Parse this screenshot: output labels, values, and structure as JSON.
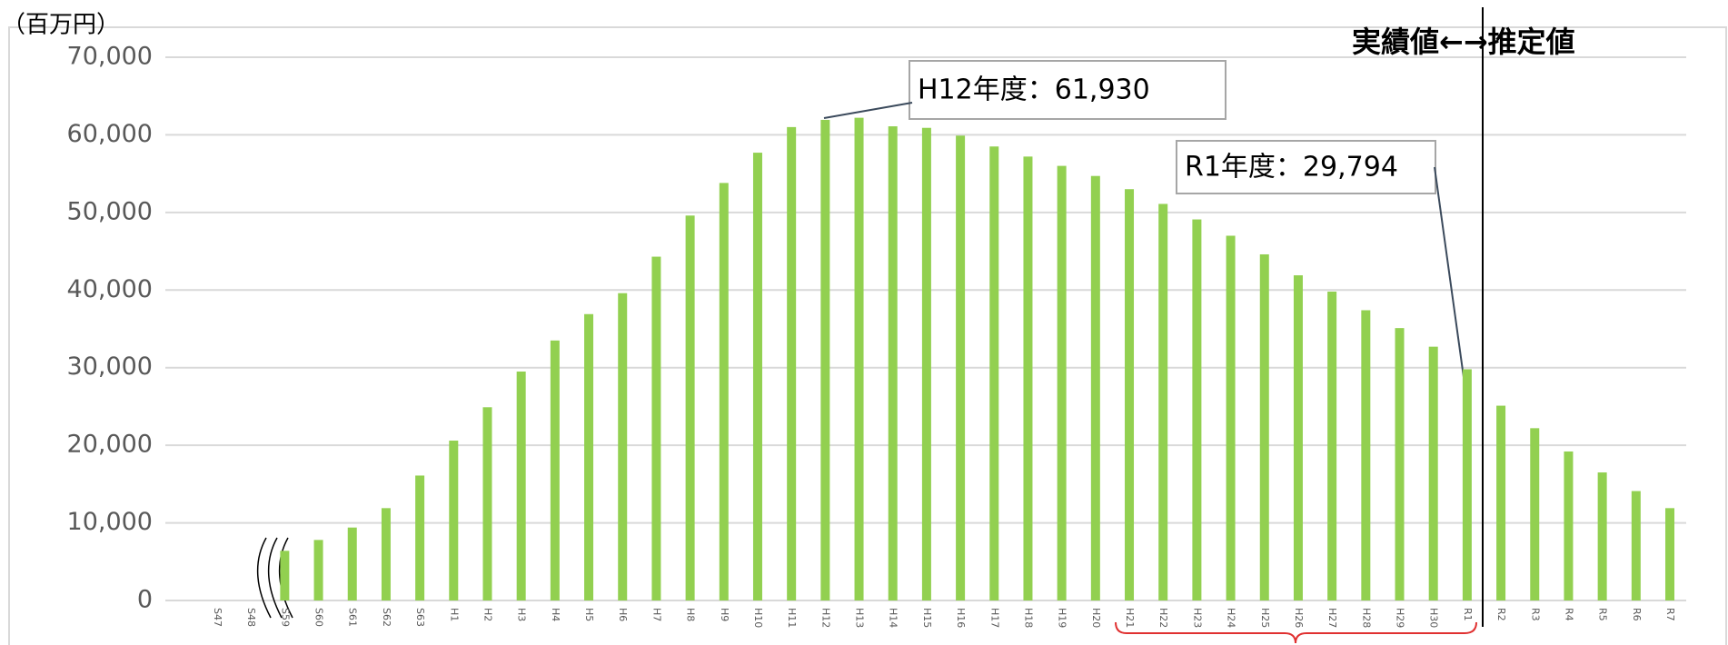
{
  "chart_data": {
    "type": "bar",
    "unit_label": "（百万円）",
    "annotations": [
      "H12年度：61,930",
      "R1年度：29,794",
      "実績値←→推定値"
    ],
    "categories": [
      "S47",
      "S48",
      "S59",
      "S60",
      "S61",
      "S62",
      "S63",
      "H1",
      "H2",
      "H3",
      "H4",
      "H5",
      "H6",
      "H7",
      "H8",
      "H9",
      "H10",
      "H11",
      "H12",
      "H13",
      "H14",
      "H15",
      "H16",
      "H17",
      "H18",
      "H19",
      "H20",
      "H21",
      "H22",
      "H23",
      "H24",
      "H25",
      "H26",
      "H27",
      "H28",
      "H29",
      "H30",
      "R1",
      "R2",
      "R3",
      "R4",
      "R5",
      "R6",
      "R7"
    ],
    "values": [
      null,
      null,
      6400,
      7800,
      9400,
      11900,
      16100,
      20600,
      24900,
      29500,
      33500,
      36900,
      39600,
      44300,
      49600,
      53800,
      57700,
      61000,
      61930,
      62200,
      61100,
      60900,
      59900,
      58500,
      57200,
      56000,
      54700,
      53000,
      51100,
      49100,
      47000,
      44600,
      41900,
      39800,
      37400,
      35100,
      32700,
      29794,
      25100,
      22200,
      19200,
      16500,
      14100,
      11900
    ],
    "color": "#92d050",
    "ylim": [
      0,
      70000
    ],
    "yticks": [
      0,
      {
        "value": 10000,
        "label": "10,000"
      },
      {
        "value": 20000,
        "label": "20,000"
      },
      {
        "value": 30000,
        "label": "30,000"
      },
      {
        "value": 40000,
        "label": "40,000"
      },
      {
        "value": 50000,
        "label": "50,000"
      },
      {
        "value": 60000,
        "label": "60,000"
      },
      {
        "value": 70000,
        "label": "70,000"
      }
    ],
    "grid": true
  }
}
